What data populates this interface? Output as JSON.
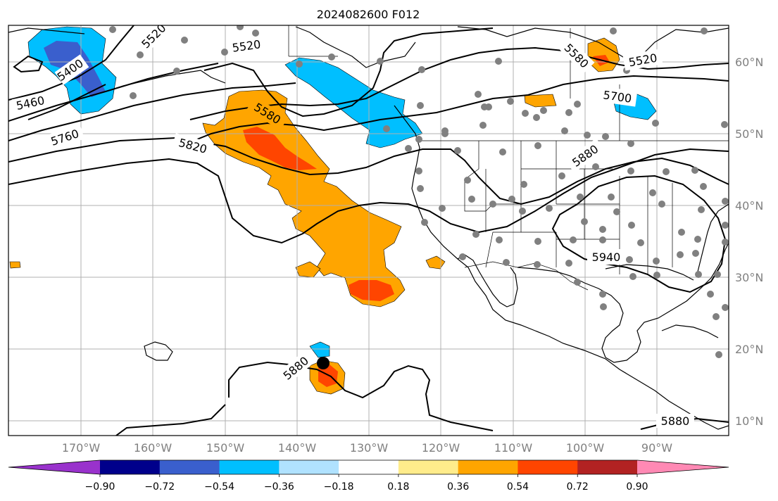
{
  "title": "2024082600 F012",
  "lon_ticks": [
    "170°W",
    "160°W",
    "150°W",
    "140°W",
    "130°W",
    "120°W",
    "110°W",
    "100°W",
    "90°W"
  ],
  "lat_ticks": [
    "60°N",
    "50°N",
    "40°N",
    "30°N",
    "20°N",
    "10°N"
  ],
  "contour_labels": [
    "5400",
    "5460",
    "5520",
    "5520",
    "5580",
    "5580",
    "5520",
    "5700",
    "5760",
    "5820",
    "5880",
    "5940",
    "5880",
    "5880"
  ],
  "colorbar": {
    "colors": [
      "#9932cc",
      "#00008b",
      "#3a5fcd",
      "#00bfff",
      "#b0e2ff",
      "#ffffff",
      "#ffec8b",
      "#ffa500",
      "#ff4500",
      "#b22222",
      "#ff89b4"
    ],
    "tick_labels": [
      "−0.90",
      "−0.72",
      "−0.54",
      "−0.36",
      "−0.18",
      "0.18",
      "0.36",
      "0.54",
      "0.72",
      "0.90"
    ]
  },
  "colors": {
    "positive_light": "#ffa500",
    "positive_strong": "#ff4500",
    "negative_light": "#00bfff",
    "negative_strong": "#3a5fcd",
    "station_dot": "#808080",
    "storm_center": "#000000"
  }
}
